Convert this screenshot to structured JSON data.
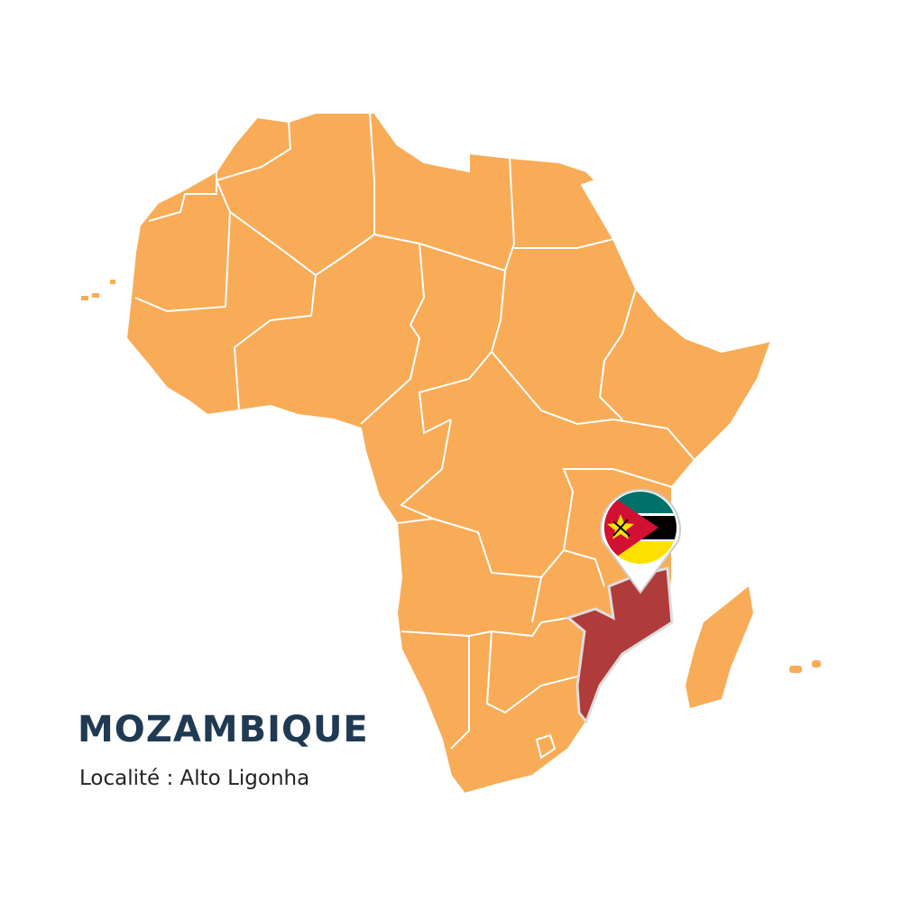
{
  "country": "MOZAMBIQUE",
  "locality": "Localité : Alto Ligonha",
  "colors": {
    "land": "#f8ac57",
    "highlight": "#b03b3b",
    "border": "#ffffff",
    "title": "#1f3a52"
  },
  "marker": {
    "icon": "mozambique-flag-pin-icon",
    "flag_colors": [
      "#007168",
      "#000000",
      "#fce100",
      "#d21034",
      "#ffffff"
    ]
  }
}
